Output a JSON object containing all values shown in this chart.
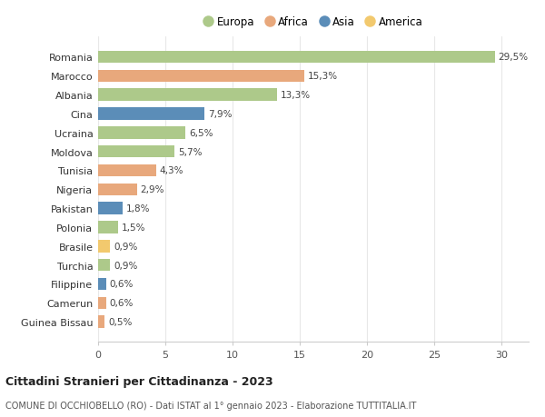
{
  "countries": [
    "Romania",
    "Marocco",
    "Albania",
    "Cina",
    "Ucraina",
    "Moldova",
    "Tunisia",
    "Nigeria",
    "Pakistan",
    "Polonia",
    "Brasile",
    "Turchia",
    "Filippine",
    "Camerun",
    "Guinea Bissau"
  ],
  "values": [
    29.5,
    15.3,
    13.3,
    7.9,
    6.5,
    5.7,
    4.3,
    2.9,
    1.8,
    1.5,
    0.9,
    0.9,
    0.6,
    0.6,
    0.5
  ],
  "labels": [
    "29,5%",
    "15,3%",
    "13,3%",
    "7,9%",
    "6,5%",
    "5,7%",
    "4,3%",
    "2,9%",
    "1,8%",
    "1,5%",
    "0,9%",
    "0,9%",
    "0,6%",
    "0,6%",
    "0,5%"
  ],
  "continents": [
    "Europa",
    "Africa",
    "Europa",
    "Asia",
    "Europa",
    "Europa",
    "Africa",
    "Africa",
    "Asia",
    "Europa",
    "America",
    "Europa",
    "Asia",
    "Africa",
    "Africa"
  ],
  "continent_colors": {
    "Europa": "#adc98a",
    "Africa": "#e8a87c",
    "Asia": "#5b8db8",
    "America": "#f2c96e"
  },
  "legend_order": [
    "Europa",
    "Africa",
    "Asia",
    "America"
  ],
  "legend_colors": [
    "#adc98a",
    "#e8a87c",
    "#5b8db8",
    "#f2c96e"
  ],
  "background_color": "#ffffff",
  "grid_color": "#e8e8e8",
  "title": "Cittadini Stranieri per Cittadinanza - 2023",
  "subtitle": "COMUNE DI OCCHIOBELLO (RO) - Dati ISTAT al 1° gennaio 2023 - Elaborazione TUTTITALIA.IT",
  "xlim": [
    0,
    32
  ],
  "xticks": [
    0,
    5,
    10,
    15,
    20,
    25,
    30
  ],
  "bar_height": 0.65,
  "label_fontsize": 7.5,
  "ytick_fontsize": 8,
  "xtick_fontsize": 8,
  "legend_fontsize": 8.5,
  "title_fontsize": 9,
  "subtitle_fontsize": 7
}
